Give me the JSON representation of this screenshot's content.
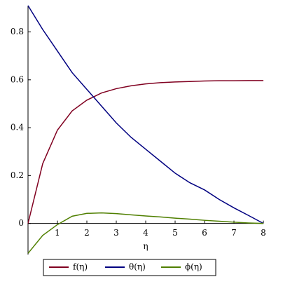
{
  "chart_data": {
    "type": "line",
    "x_label": "η",
    "x": [
      0,
      0.5,
      1,
      1.5,
      2,
      2.5,
      3,
      3.5,
      4,
      4.5,
      5,
      5.5,
      6,
      6.5,
      7,
      7.5,
      8
    ],
    "series": [
      {
        "name": "f(η)",
        "color": "#800020",
        "values": [
          0,
          0.25,
          0.39,
          0.47,
          0.515,
          0.545,
          0.563,
          0.575,
          0.583,
          0.588,
          0.591,
          0.593,
          0.595,
          0.596,
          0.596,
          0.597,
          0.597
        ]
      },
      {
        "name": "θ(η)",
        "color": "#000080",
        "values": [
          0.91,
          0.81,
          0.72,
          0.63,
          0.56,
          0.49,
          0.42,
          0.36,
          0.31,
          0.26,
          0.21,
          0.17,
          0.14,
          0.1,
          0.065,
          0.033,
          0
        ]
      },
      {
        "name": "ϕ(η)",
        "color": "#4f7f00",
        "values": [
          -0.125,
          -0.05,
          -0.005,
          0.03,
          0.042,
          0.044,
          0.041,
          0.036,
          0.031,
          0.027,
          0.022,
          0.018,
          0.013,
          0.009,
          0.005,
          0.002,
          0
        ]
      }
    ],
    "xlim": [
      0,
      8
    ],
    "xticks": [
      1,
      2,
      3,
      4,
      5,
      6,
      7,
      8
    ],
    "ylim": [
      -0.13,
      0.91
    ],
    "yticks": [
      0,
      0.2,
      0.4,
      0.6,
      0.8
    ],
    "grid": false,
    "legend": "bottom"
  }
}
